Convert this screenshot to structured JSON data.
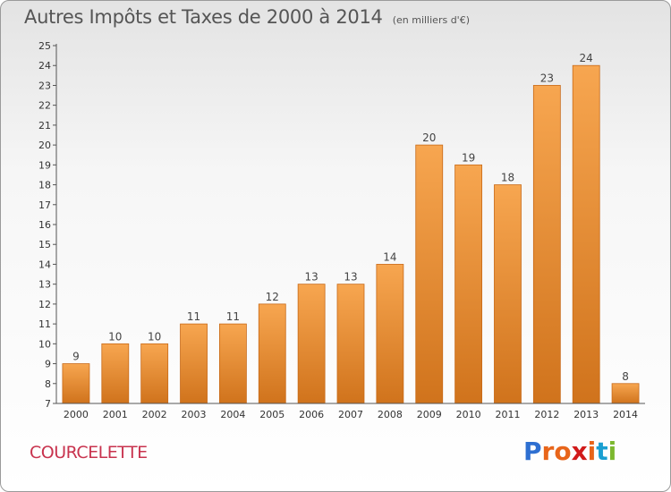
{
  "title": "Autres Impôts et Taxes de 2000 à 2014",
  "unit_note": "(en milliers d'€)",
  "commune": "COURCELETTE",
  "brand": {
    "letters": [
      "P",
      "r",
      "o",
      "x",
      "i",
      "t",
      "i"
    ],
    "colors": [
      "#2e6fd1",
      "#e8651a",
      "#e8651a",
      "#d11a1a",
      "#e8651a",
      "#1a9fd1",
      "#7cb82f"
    ]
  },
  "chart_data": {
    "type": "bar",
    "categories": [
      "2000",
      "2001",
      "2002",
      "2003",
      "2004",
      "2005",
      "2006",
      "2007",
      "2008",
      "2009",
      "2010",
      "2011",
      "2012",
      "2013",
      "2014"
    ],
    "values": [
      9,
      10,
      10,
      11,
      11,
      12,
      13,
      13,
      14,
      20,
      19,
      18,
      23,
      24,
      8
    ],
    "ylim": [
      7,
      25
    ],
    "yticks": [
      7,
      8,
      9,
      10,
      11,
      12,
      13,
      14,
      15,
      16,
      17,
      18,
      19,
      20,
      21,
      22,
      23,
      24,
      25
    ],
    "grid": false,
    "legend": "none",
    "bar_color_light": "#f7a650",
    "bar_color_dark": "#d0731c"
  }
}
